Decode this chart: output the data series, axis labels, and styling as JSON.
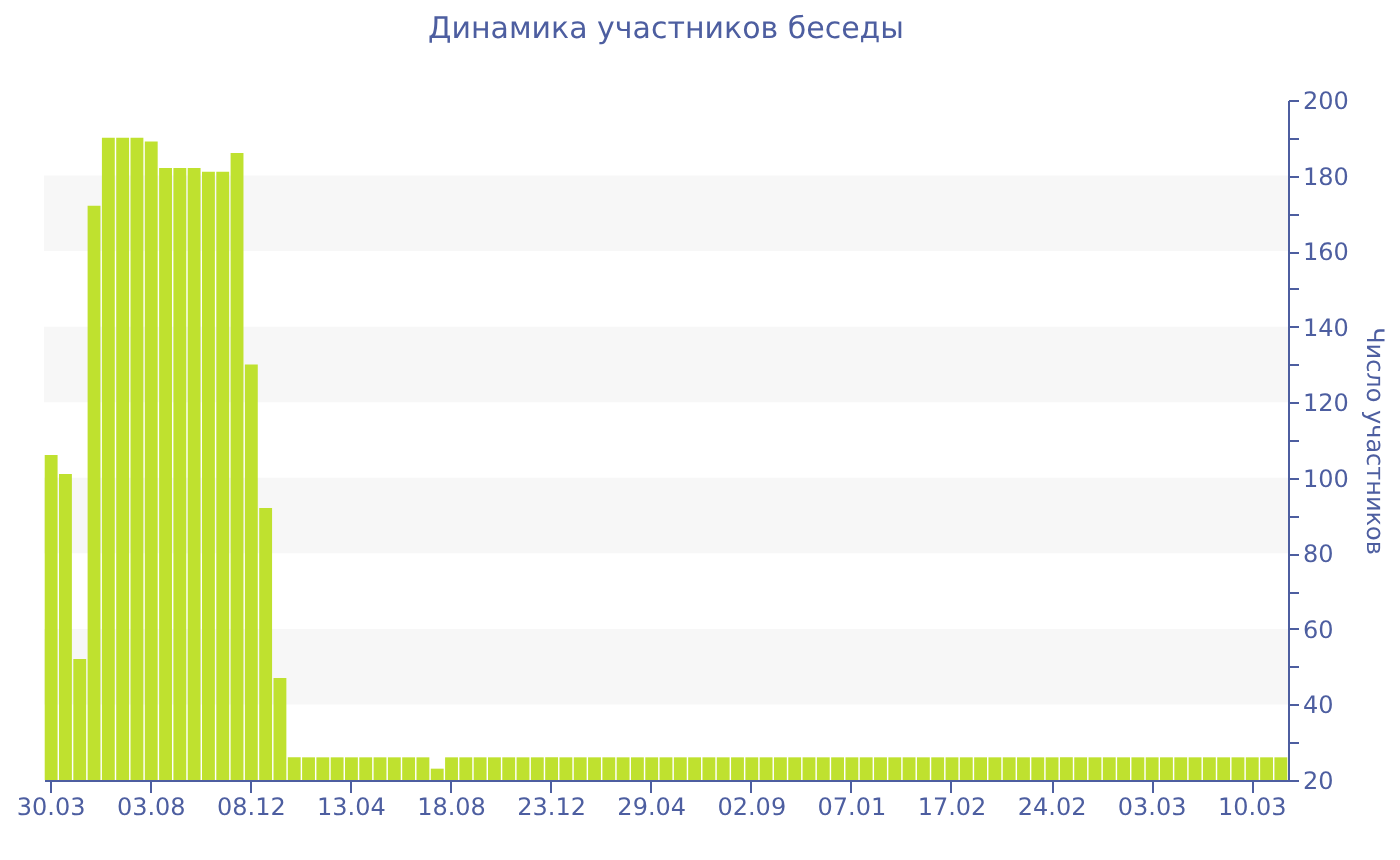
{
  "chart_data": {
    "type": "bar",
    "title": "Динамика участников беседы",
    "ylabel": "Число участников",
    "categories": [
      "30.03",
      null,
      null,
      null,
      null,
      null,
      null,
      "03.08",
      null,
      null,
      null,
      null,
      null,
      null,
      "08.12",
      null,
      null,
      null,
      null,
      null,
      null,
      "13.04",
      null,
      null,
      null,
      null,
      null,
      null,
      "18.08",
      null,
      null,
      null,
      null,
      null,
      null,
      "23.12",
      null,
      null,
      null,
      null,
      null,
      null,
      "29.04",
      null,
      null,
      null,
      null,
      null,
      null,
      "02.09",
      null,
      null,
      null,
      null,
      null,
      null,
      "07.01",
      null,
      null,
      null,
      null,
      null,
      null,
      "17.02",
      null,
      null,
      null,
      null,
      null,
      null,
      "24.02",
      null,
      null,
      null,
      null,
      null,
      null,
      "03.03",
      null,
      null,
      null,
      null,
      null,
      null,
      "10.03",
      null,
      null
    ],
    "values": [
      106,
      101,
      52,
      172,
      190,
      190,
      190,
      189,
      182,
      182,
      182,
      181,
      181,
      186,
      130,
      92,
      47,
      26,
      26,
      26,
      26,
      26,
      26,
      26,
      26,
      26,
      26,
      23,
      26,
      26,
      26,
      26,
      26,
      26,
      26,
      26,
      26,
      26,
      26,
      26,
      26,
      26,
      26,
      26,
      26,
      26,
      26,
      26,
      26,
      26,
      26,
      26,
      26,
      26,
      26,
      26,
      26,
      26,
      26,
      26,
      26,
      26,
      26,
      26,
      26,
      26,
      26,
      26,
      26,
      26,
      26,
      26,
      26,
      26,
      26,
      26,
      26,
      26,
      26,
      26,
      26,
      26,
      26,
      26,
      26,
      26,
      26
    ],
    "color": "#bfe12f",
    "ylim": [
      20,
      200
    ],
    "yticks": [
      20,
      {
        "value": 30,
        "label": null
      },
      40,
      {
        "value": 50,
        "label": null
      },
      60,
      {
        "value": 70,
        "label": null
      },
      80,
      {
        "value": 90,
        "label": null
      },
      100,
      {
        "value": 110,
        "label": null
      },
      120,
      {
        "value": 130,
        "label": null
      },
      140,
      {
        "value": 150,
        "label": null
      },
      160,
      {
        "value": 170,
        "label": null
      },
      180,
      {
        "value": 190,
        "label": null
      },
      200
    ],
    "bands": [
      {
        "axis": "y",
        "from": 40,
        "to": 60,
        "color": "#f7f7f7"
      },
      {
        "axis": "y",
        "from": 80,
        "to": 100,
        "color": "#f7f7f7"
      },
      {
        "axis": "y",
        "from": 120,
        "to": 140,
        "color": "#f7f7f7"
      },
      {
        "axis": "y",
        "from": 160,
        "to": 180,
        "color": "#f7f7f7"
      }
    ],
    "grid": false
  }
}
